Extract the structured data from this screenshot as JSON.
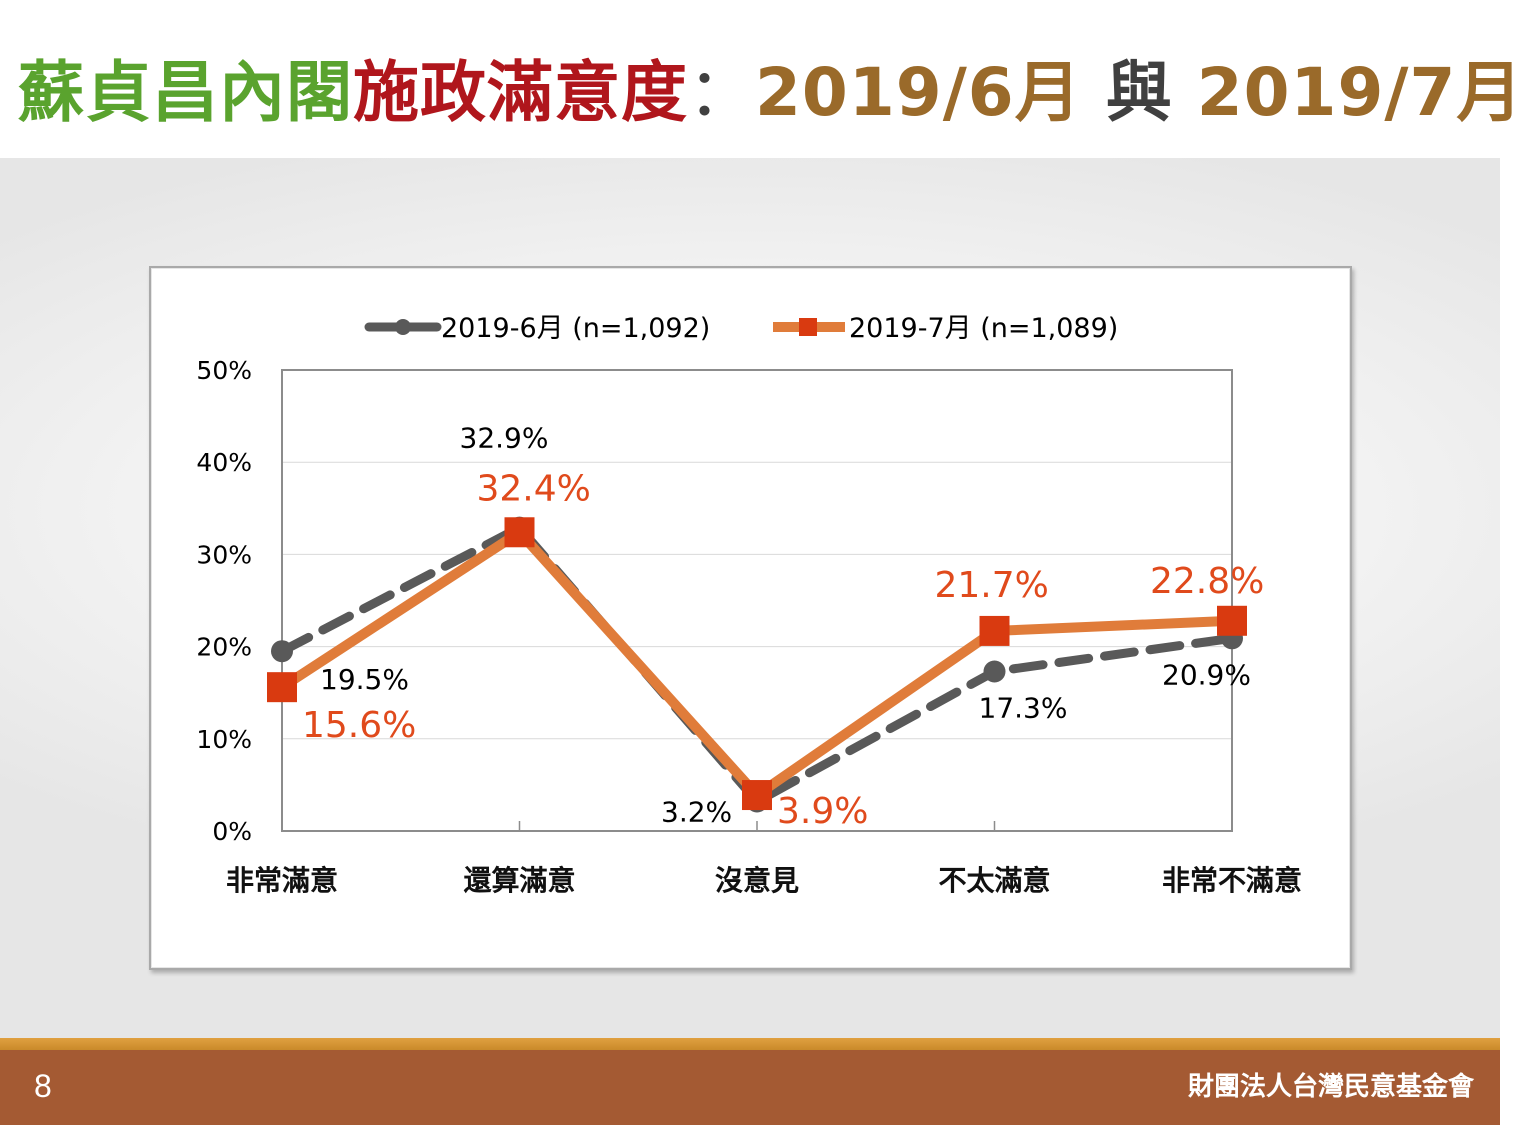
{
  "title": {
    "part1": "蘇貞昌內閣",
    "part2": "施政滿意度",
    "colon": "：",
    "part3": "2019/6月",
    "connector": " 與 ",
    "part4": "2019/7月"
  },
  "colors": {
    "series_june": "#595959",
    "series_july_line": "#e07c3a",
    "series_july_marker": "#d93a10",
    "july_label": "#e04a1c",
    "footer_bg": "#a45a33",
    "footer_band": "#d9982f"
  },
  "chart_data": {
    "type": "line",
    "categories": [
      "非常滿意",
      "還算滿意",
      "沒意見",
      "不太滿意",
      "非常不滿意"
    ],
    "series": [
      {
        "name": "2019-6月  (n=1,092)",
        "values": [
          19.5,
          32.9,
          3.2,
          17.3,
          20.9
        ],
        "style": "dashed",
        "marker": "circle"
      },
      {
        "name": "2019-7月  (n=1,089)",
        "values": [
          15.6,
          32.4,
          3.9,
          21.7,
          22.8
        ],
        "style": "solid",
        "marker": "square"
      }
    ],
    "data_labels": {
      "june": [
        "19.5%",
        "32.9%",
        "3.2%",
        "17.3%",
        "20.9%"
      ],
      "july": [
        "15.6%",
        "32.4%",
        "3.9%",
        "21.7%",
        "22.8%"
      ]
    },
    "yticks": [
      "0%",
      "10%",
      "20%",
      "30%",
      "40%",
      "50%"
    ],
    "ylim": [
      0,
      50
    ],
    "legend_position": "top",
    "grid": true
  },
  "footer": {
    "page_number": "8",
    "organization": "財團法人台灣民意基金會"
  }
}
